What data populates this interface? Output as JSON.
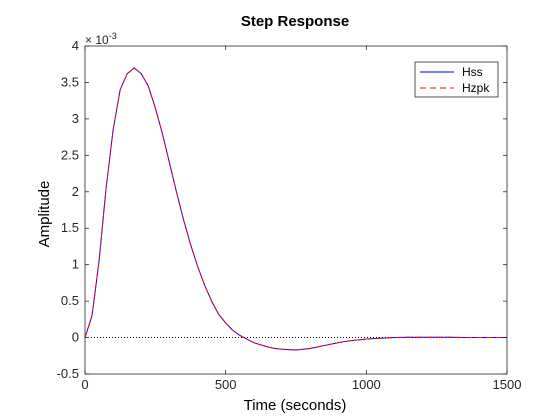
{
  "chart_data": {
    "type": "line",
    "title": "Step Response",
    "xlabel": "Time (seconds)",
    "ylabel": "Amplitude",
    "y_exponent_label": "× 10^-3",
    "xlim": [
      0,
      1500
    ],
    "ylim": [
      -0.5,
      4
    ],
    "x_ticks": [
      "0",
      "500",
      "1000",
      "1500"
    ],
    "y_ticks": [
      "-0.5",
      "0",
      "0.5",
      "1",
      "1.5",
      "2",
      "2.5",
      "3",
      "3.5",
      "4"
    ],
    "reference_line": {
      "y": 0,
      "style": "dotted",
      "color": "#000000"
    },
    "legend": {
      "placement": "top-right"
    },
    "grid": false,
    "x": [
      0,
      25,
      50,
      75,
      100,
      125,
      150,
      175,
      200,
      225,
      250,
      275,
      300,
      325,
      350,
      375,
      400,
      425,
      450,
      475,
      500,
      525,
      550,
      575,
      600,
      625,
      650,
      675,
      700,
      725,
      750,
      775,
      800,
      825,
      850,
      875,
      900,
      925,
      950,
      975,
      1000,
      1050,
      1100,
      1150,
      1200,
      1250,
      1300,
      1350,
      1400,
      1450,
      1500
    ],
    "series": [
      {
        "name": "Hss",
        "color": "#0000ff",
        "style": "solid",
        "values": [
          0.0,
          0.3,
          1.05,
          2.05,
          2.85,
          3.4,
          3.62,
          3.7,
          3.62,
          3.45,
          3.15,
          2.8,
          2.4,
          2.0,
          1.62,
          1.28,
          0.98,
          0.72,
          0.5,
          0.32,
          0.2,
          0.1,
          0.03,
          -0.02,
          -0.07,
          -0.1,
          -0.13,
          -0.15,
          -0.16,
          -0.165,
          -0.17,
          -0.16,
          -0.15,
          -0.13,
          -0.11,
          -0.09,
          -0.07,
          -0.055,
          -0.04,
          -0.03,
          -0.02,
          -0.01,
          0.0,
          0.005,
          0.005,
          0.005,
          0.005,
          0.0,
          0.0,
          0.0,
          0.0
        ]
      },
      {
        "name": "Hzpk",
        "color": "#ff0000",
        "style": "dashed",
        "values": [
          0.0,
          0.3,
          1.05,
          2.05,
          2.85,
          3.4,
          3.62,
          3.7,
          3.62,
          3.45,
          3.15,
          2.8,
          2.4,
          2.0,
          1.62,
          1.28,
          0.98,
          0.72,
          0.5,
          0.32,
          0.2,
          0.1,
          0.03,
          -0.02,
          -0.07,
          -0.1,
          -0.13,
          -0.15,
          -0.16,
          -0.165,
          -0.17,
          -0.16,
          -0.15,
          -0.13,
          -0.11,
          -0.09,
          -0.07,
          -0.055,
          -0.04,
          -0.03,
          -0.02,
          -0.01,
          0.0,
          0.005,
          0.005,
          0.005,
          0.005,
          0.0,
          0.0,
          0.0,
          0.0
        ]
      }
    ]
  }
}
